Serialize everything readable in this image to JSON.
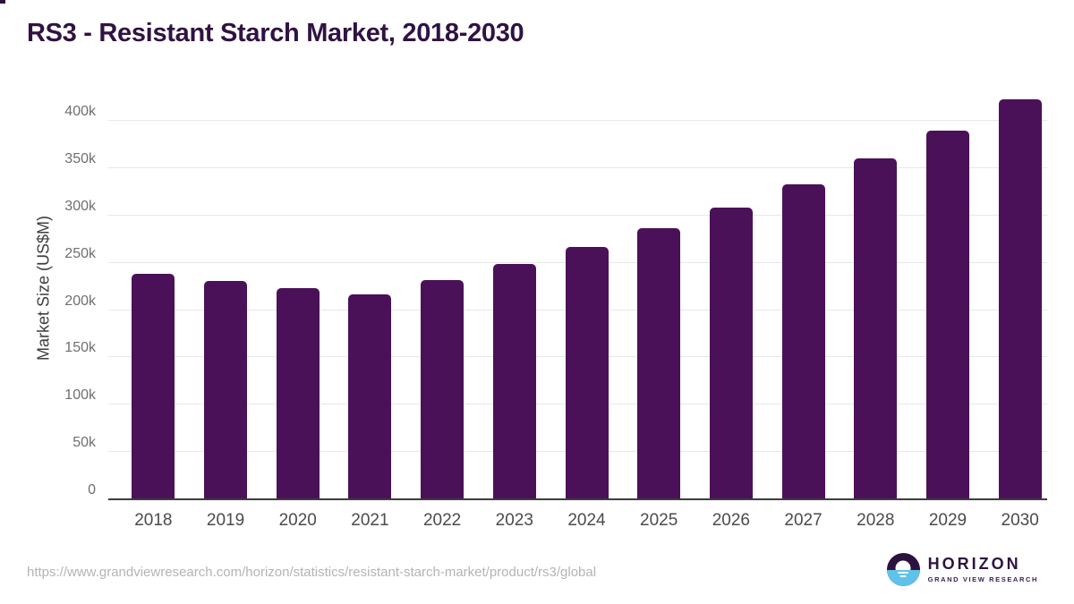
{
  "chart_data": {
    "type": "bar",
    "title": "RS3 - Resistant Starch Market, 2018-2030",
    "xlabel": "",
    "ylabel": "Market Size (US$M)",
    "categories": [
      "2018",
      "2019",
      "2020",
      "2021",
      "2022",
      "2023",
      "2024",
      "2025",
      "2026",
      "2027",
      "2028",
      "2029",
      "2030"
    ],
    "values": [
      238000,
      231000,
      223000,
      217000,
      232000,
      249000,
      267000,
      287000,
      308000,
      333000,
      360000,
      390000,
      423000
    ],
    "ylim": [
      0,
      433000
    ],
    "yticks": [
      0,
      50000,
      100000,
      150000,
      200000,
      250000,
      300000,
      350000,
      400000
    ],
    "ytick_labels": [
      "0",
      "50k",
      "100k",
      "150k",
      "200k",
      "250k",
      "300k",
      "350k",
      "400k"
    ],
    "grid": true,
    "legend": "none",
    "bar_color": "#4a1158"
  },
  "footer": {
    "source_url": "https://www.grandviewresearch.com/horizon/statistics/resistant-starch-market/product/rs3/global",
    "logo": {
      "name": "HORIZON",
      "subtitle": "GRAND VIEW RESEARCH",
      "purple": "#2c123f",
      "blue": "#5fc2e9"
    }
  }
}
